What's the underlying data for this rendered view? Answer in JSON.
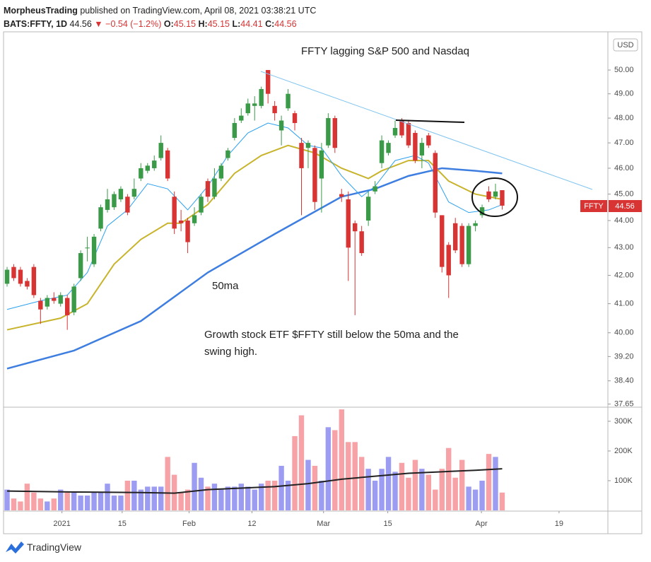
{
  "header": {
    "author": "MorpheusTrading",
    "published": "published on TradingView.com, April 08, 2021 03:38:21 UTC",
    "symbol": "BATS:FFTY, 1D",
    "change_arrow": "▼",
    "change": "−0.54 (−1.2%)",
    "ohlc_labels": [
      "O:",
      "H:",
      "L:",
      "C:"
    ]
  },
  "chart_data": {
    "type": "candlestick",
    "annotations": [
      "FFTY lagging S&P 500 and Nasdaq",
      "50ma",
      "Growth stock ETF $FFTY still below the 50ma and the",
      "swing high."
    ],
    "currency": "USD",
    "symbol_tag": "FFTY",
    "open": [
      41.7,
      42.3,
      42.2,
      41.8,
      42.3,
      41.1,
      40.9,
      41.2,
      41.0,
      41.2,
      40.7,
      41.9,
      43.0,
      42.4,
      43.7,
      44.4,
      44.5,
      44.8,
      44.9,
      44.9,
      45.6,
      45.9,
      46.0,
      46.4,
      46.7,
      44.9,
      44.0,
      44.0,
      43.9,
      44.3,
      45.5,
      44.9,
      45.6,
      46.4,
      47.2,
      47.9,
      48.2,
      48.5,
      48.5,
      50.0,
      48.5,
      47.5,
      48.4,
      48.2,
      47.0,
      46.8,
      46.8,
      45.6,
      46.9,
      48.0,
      45.0,
      44.8,
      43.9,
      43.6,
      44.0,
      45.1,
      46.2,
      46.6,
      47.3,
      47.9,
      47.8,
      47.4,
      46.5,
      47.3,
      46.6,
      44.2,
      43.1,
      43.9,
      43.8,
      42.4,
      43.8,
      44.2,
      45.1,
      44.9,
      45.15
    ],
    "high": [
      42.3,
      42.4,
      42.3,
      41.9,
      42.4,
      41.2,
      41.3,
      41.4,
      41.4,
      41.3,
      41.7,
      42.9,
      43.4,
      43.5,
      44.6,
      45.2,
      45.1,
      45.3,
      45.0,
      45.6,
      46.2,
      46.2,
      46.5,
      47.3,
      46.8,
      45.1,
      44.4,
      44.1,
      44.5,
      45.0,
      45.6,
      46.0,
      46.2,
      46.8,
      48.0,
      48.4,
      48.8,
      48.9,
      49.3,
      50.0,
      48.7,
      48.1,
      49.2,
      48.3,
      47.2,
      47.1,
      46.9,
      47.0,
      48.2,
      48.1,
      45.2,
      45.1,
      44.0,
      43.8,
      45.1,
      45.5,
      47.3,
      47.1,
      47.9,
      48.0,
      47.9,
      47.5,
      47.2,
      47.4,
      46.7,
      44.2,
      43.2,
      44.1,
      43.9,
      43.9,
      44.0,
      44.6,
      45.3,
      45.4,
      45.15
    ],
    "low": [
      41.6,
      41.8,
      41.6,
      41.5,
      41.2,
      40.3,
      40.8,
      41.0,
      40.9,
      40.1,
      40.6,
      41.8,
      42.5,
      42.3,
      43.6,
      44.3,
      44.4,
      44.7,
      44.2,
      44.8,
      45.5,
      45.8,
      45.9,
      46.3,
      45.5,
      43.5,
      43.6,
      42.8,
      43.8,
      44.2,
      44.7,
      44.8,
      45.5,
      46.3,
      47.1,
      47.8,
      48.1,
      47.9,
      48.4,
      48.6,
      47.9,
      46.9,
      48.3,
      47.5,
      44.2,
      46.0,
      44.4,
      44.3,
      46.8,
      46.6,
      44.7,
      41.8,
      40.6,
      42.7,
      43.8,
      45.0,
      46.0,
      46.5,
      47.2,
      47.2,
      46.8,
      46.2,
      46.0,
      46.8,
      44.1,
      42.1,
      41.2,
      42.8,
      42.3,
      42.3,
      43.6,
      44.1,
      44.7,
      44.8,
      44.41
    ],
    "close": [
      42.2,
      41.9,
      41.7,
      41.6,
      41.3,
      40.8,
      41.2,
      41.1,
      41.3,
      40.6,
      41.6,
      42.8,
      43.0,
      43.4,
      44.5,
      44.8,
      45.0,
      45.2,
      44.3,
      45.2,
      46.0,
      46.1,
      46.3,
      47.0,
      45.6,
      43.7,
      43.9,
      43.2,
      44.2,
      44.9,
      44.9,
      45.6,
      46.1,
      46.7,
      47.8,
      48.1,
      48.6,
      48.6,
      49.2,
      49.0,
      48.2,
      47.9,
      49.0,
      47.8,
      46.0,
      47.0,
      44.7,
      46.7,
      48.0,
      46.8,
      44.9,
      43.0,
      43.6,
      42.8,
      44.9,
      45.3,
      47.1,
      47.0,
      47.6,
      47.3,
      46.9,
      46.3,
      47.0,
      46.9,
      44.3,
      42.3,
      42.0,
      42.9,
      42.4,
      43.8,
      43.9,
      44.5,
      44.8,
      45.1,
      44.56
    ],
    "volume": [
      70000,
      40000,
      30000,
      90000,
      60000,
      40000,
      30000,
      40000,
      70000,
      60000,
      60000,
      50000,
      50000,
      60000,
      60000,
      90000,
      50000,
      50000,
      100000,
      100000,
      70000,
      80000,
      80000,
      80000,
      180000,
      120000,
      60000,
      70000,
      160000,
      110000,
      80000,
      90000,
      70000,
      80000,
      80000,
      90000,
      80000,
      70000,
      90000,
      100000,
      100000,
      150000,
      100000,
      250000,
      320000,
      170000,
      150000,
      100000,
      280000,
      270000,
      340000,
      230000,
      230000,
      180000,
      140000,
      100000,
      140000,
      180000,
      130000,
      160000,
      110000,
      170000,
      140000,
      120000,
      70000,
      140000,
      210000,
      110000,
      170000,
      80000,
      70000,
      100000,
      190000,
      180000,
      60000
    ],
    "lines": [
      {
        "color": "#3d7ee0",
        "width": 2.5,
        "x": [
          0,
          10,
          20,
          30,
          40,
          50,
          55,
          60,
          65,
          70,
          74
        ],
        "values": [
          38.8,
          39.4,
          40.4,
          42.1,
          43.5,
          44.9,
          45.2,
          45.7,
          46.0,
          45.9,
          45.8
        ]
      },
      {
        "color": "#c8b42c",
        "width": 2,
        "x": [
          0,
          8,
          12,
          16,
          20,
          24,
          26,
          30,
          34,
          38,
          42,
          46,
          50,
          54,
          56,
          60,
          63,
          66,
          70,
          74
        ],
        "values": [
          40.1,
          40.5,
          41.0,
          42.4,
          43.3,
          43.9,
          43.9,
          44.6,
          45.8,
          46.5,
          46.9,
          46.6,
          46.0,
          45.6,
          45.9,
          46.3,
          46.3,
          45.5,
          45.0,
          44.8
        ]
      },
      {
        "color": "#2aa0f0",
        "width": 1,
        "x": [
          0,
          5,
          9,
          12,
          15,
          18,
          21,
          24,
          27,
          30,
          33,
          36,
          39,
          42,
          45,
          47,
          50,
          53,
          55,
          58,
          61,
          63,
          66,
          69,
          72,
          74
        ],
        "values": [
          40.8,
          41.1,
          41.3,
          42.1,
          43.8,
          44.4,
          45.4,
          45.2,
          44.4,
          45.3,
          46.5,
          47.4,
          47.8,
          47.6,
          46.9,
          46.8,
          45.7,
          44.9,
          45.3,
          46.3,
          46.5,
          46.2,
          44.7,
          44.3,
          44.4,
          44.6
        ]
      }
    ],
    "volume_ma": {
      "color": "#222222",
      "x": [
        0,
        10,
        20,
        25,
        30,
        40,
        45,
        50,
        55,
        60,
        65,
        70,
        74
      ],
      "values": [
        65000,
        62000,
        60000,
        58000,
        70000,
        80000,
        90000,
        105000,
        115000,
        125000,
        130000,
        135000,
        140000
      ]
    },
    "up_color": "#3a9a48",
    "down_color": "#d93434",
    "volume_up_color": "#9c9cf2",
    "volume_down_color": "#f7a2a6",
    "log_scale": true,
    "xlim": [
      -0.53,
      89.8
    ],
    "xticks": [
      {
        "value": 8.2,
        "label": "2021"
      },
      {
        "value": 17.2,
        "label": "15"
      },
      {
        "value": 27.2,
        "label": "Feb"
      },
      {
        "value": 36.6,
        "label": "12"
      },
      {
        "value": 47.3,
        "label": "Mar"
      },
      {
        "value": 56.9,
        "label": "15"
      },
      {
        "value": 70.9,
        "label": "Apr"
      },
      {
        "value": 82.5,
        "label": "19"
      }
    ],
    "ylim": [
      37.55,
      51.65
    ],
    "yticks": [
      {
        "value": 37.65,
        "label": "37.65"
      },
      {
        "value": 38.4,
        "label": "38.40"
      },
      {
        "value": 39.2,
        "label": "39.20"
      },
      {
        "value": 40,
        "label": "40.00"
      },
      {
        "value": 41,
        "label": "41.00"
      },
      {
        "value": 42,
        "label": "42.00"
      },
      {
        "value": 43,
        "label": "43.00"
      },
      {
        "value": 44,
        "label": "44.00"
      },
      {
        "value": 45,
        "label": "45.00"
      },
      {
        "value": 46,
        "label": "46.00"
      },
      {
        "value": 47,
        "label": "47.00"
      },
      {
        "value": 48,
        "label": "48.00"
      },
      {
        "value": 49,
        "label": "49.00"
      },
      {
        "value": 50,
        "label": "50.00"
      }
    ],
    "vlim": [
      0,
      345000
    ],
    "vticks": [
      {
        "value": 100000,
        "label": "100K"
      },
      {
        "value": 200000,
        "label": "200K"
      },
      {
        "value": 300000,
        "label": "300K"
      }
    ]
  },
  "footer": {
    "brand": "TradingView"
  }
}
